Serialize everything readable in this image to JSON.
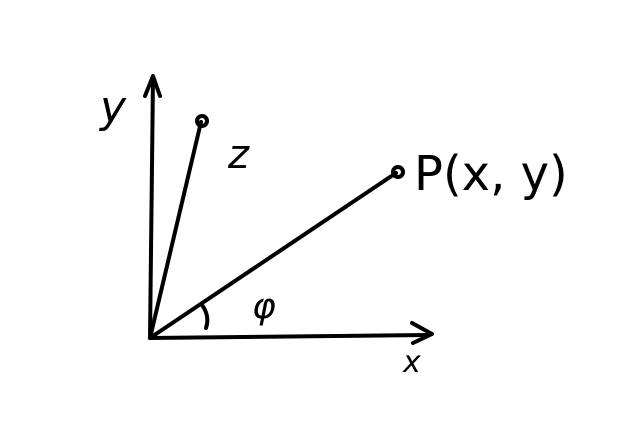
{
  "labels": {
    "y_axis": "y",
    "x_axis": "x",
    "z": "z",
    "point": "P(x, y)",
    "angle": "φ"
  }
}
